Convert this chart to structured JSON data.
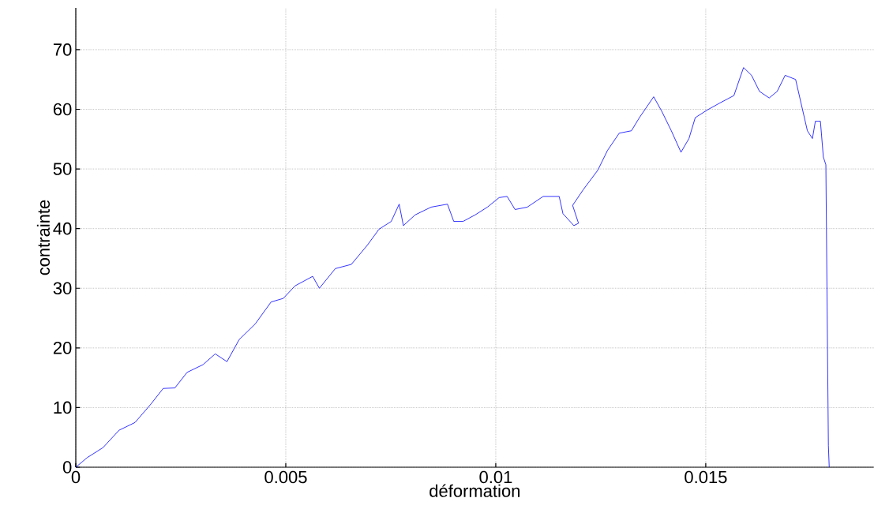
{
  "chart_data": {
    "type": "line",
    "xlabel": "déformation",
    "ylabel": "contrainte",
    "x": [
      0,
      0.00027,
      0.00065,
      0.00103,
      0.00141,
      0.00179,
      0.00208,
      0.00236,
      0.00265,
      0.00303,
      0.00332,
      0.0036,
      0.00389,
      0.00427,
      0.00465,
      0.00494,
      0.00522,
      0.00564,
      0.0058,
      0.00618,
      0.00656,
      0.00694,
      0.00722,
      0.00751,
      0.0077,
      0.0078,
      0.00808,
      0.00846,
      0.00885,
      0.009,
      0.00922,
      0.00951,
      0.0098,
      0.01008,
      0.01027,
      0.01046,
      0.01075,
      0.01113,
      0.01151,
      0.0116,
      0.01186,
      0.01197,
      0.01183,
      0.01208,
      0.01243,
      0.01266,
      0.01294,
      0.01323,
      0.01342,
      0.01376,
      0.01395,
      0.01418,
      0.01441,
      0.0146,
      0.01475,
      0.01504,
      0.01532,
      0.01567,
      0.0159,
      0.01609,
      0.01628,
      0.01651,
      0.0167,
      0.01689,
      0.01714,
      0.01727,
      0.01742,
      0.01754,
      0.01761,
      0.01773,
      0.0178,
      0.01786,
      0.01792,
      0.01794
    ],
    "series": [
      {
        "color": "#0000ff",
        "values": [
          0,
          1.6,
          3.3,
          6.2,
          7.5,
          10.6,
          13.2,
          13.3,
          15.9,
          17.2,
          19.0,
          17.7,
          21.4,
          24.0,
          27.7,
          28.3,
          30.4,
          32.0,
          30.0,
          33.3,
          34.0,
          37.2,
          39.9,
          41.2,
          44.1,
          40.5,
          42.3,
          43.6,
          44.1,
          41.2,
          41.2,
          42.3,
          43.6,
          45.2,
          45.4,
          43.2,
          43.6,
          45.4,
          45.4,
          42.5,
          40.5,
          40.9,
          43.9,
          46.5,
          49.8,
          53.1,
          56.0,
          56.4,
          58.6,
          62.1,
          59.7,
          56.4,
          52.8,
          55.1,
          58.6,
          59.9,
          61.0,
          62.3,
          67.0,
          65.7,
          63.0,
          61.9,
          63.0,
          65.7,
          65.0,
          61.0,
          56.4,
          55.1,
          58.0,
          58.0,
          52.0,
          50.7,
          3.6,
          0
        ]
      }
    ],
    "xlim": [
      0,
      0.019
    ],
    "ylim": [
      0,
      77
    ],
    "xticks": [
      0,
      0.005,
      0.01,
      0.015
    ],
    "yticks": [
      0,
      10,
      20,
      30,
      40,
      50,
      60,
      70
    ],
    "grid": true,
    "line_style": "solid"
  }
}
